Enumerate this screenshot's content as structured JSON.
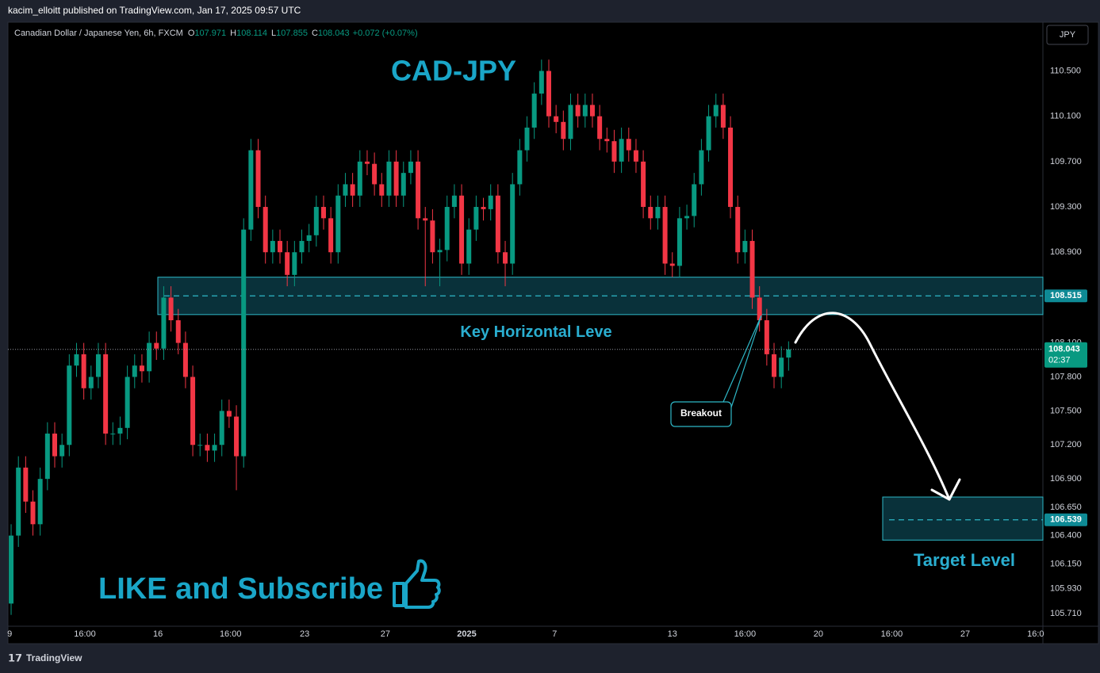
{
  "header": {
    "byline": "kacim_elloitt published on TradingView.com, Jan 17, 2025 09:57 UTC",
    "symbol": "Canadian Dollar / Japanese Yen, 6h, FXCM",
    "ohlc_labels": [
      "O",
      "H",
      "L",
      "C"
    ],
    "change": "+0.072 (+0.07%)",
    "currency": "JPY"
  },
  "footer": {
    "brand": "TradingView"
  },
  "chart_data": {
    "type": "candlestick",
    "up_color": "#089981",
    "down_color": "#f23645",
    "open": [
      105.8,
      106.4,
      107.0,
      106.7,
      106.5,
      106.9,
      107.3,
      107.1,
      107.2,
      107.9,
      108.0,
      107.7,
      107.8,
      108.0,
      107.3,
      107.3,
      107.35,
      107.8,
      107.9,
      107.85,
      108.1,
      108.05,
      108.5,
      108.3,
      108.1,
      107.8,
      107.2,
      107.2,
      107.15,
      107.2,
      107.5,
      107.45,
      107.1,
      109.1,
      109.8,
      109.3,
      108.9,
      109.0,
      108.9,
      108.7,
      108.9,
      109.0,
      109.05,
      109.3,
      109.2,
      108.9,
      109.4,
      109.5,
      109.4,
      109.7,
      109.68,
      109.5,
      109.4,
      109.7,
      109.4,
      109.6,
      109.7,
      109.2,
      109.18,
      108.9,
      108.92,
      109.3,
      109.4,
      108.8,
      109.1,
      109.3,
      109.28,
      109.4,
      108.9,
      108.8,
      109.5,
      109.8,
      110.0,
      110.3,
      110.5,
      110.1,
      110.05,
      109.9,
      110.2,
      110.1,
      110.2,
      110.1,
      109.9,
      109.88,
      109.7,
      109.9,
      109.8,
      109.7,
      109.3,
      109.2,
      109.3,
      108.8,
      108.78,
      109.2,
      109.22,
      109.5,
      109.8,
      110.1,
      110.2,
      110.0,
      109.3,
      108.9,
      109.0,
      108.5,
      108.3,
      108.0,
      107.8,
      107.971
    ],
    "high": [
      106.5,
      107.1,
      107.1,
      106.8,
      107.0,
      107.4,
      107.4,
      107.3,
      108.0,
      108.1,
      108.1,
      107.9,
      108.1,
      108.1,
      107.4,
      107.45,
      107.9,
      108.0,
      108.0,
      108.2,
      108.2,
      108.6,
      108.6,
      108.4,
      108.2,
      107.9,
      107.3,
      107.3,
      107.3,
      107.6,
      107.6,
      107.55,
      109.2,
      109.9,
      109.9,
      109.4,
      109.1,
      109.1,
      109.0,
      109.0,
      109.1,
      109.15,
      109.4,
      109.4,
      109.3,
      109.5,
      109.6,
      109.6,
      109.8,
      109.8,
      109.78,
      109.6,
      109.8,
      109.8,
      109.7,
      109.8,
      109.8,
      109.3,
      109.28,
      109.02,
      109.4,
      109.5,
      109.5,
      109.2,
      109.4,
      109.38,
      109.5,
      109.5,
      109.0,
      109.6,
      109.9,
      110.1,
      110.4,
      110.6,
      110.6,
      110.2,
      110.15,
      110.3,
      110.3,
      110.3,
      110.3,
      110.2,
      110.0,
      109.98,
      110.0,
      110.0,
      109.9,
      109.8,
      109.4,
      109.4,
      109.4,
      108.9,
      109.3,
      109.32,
      109.6,
      109.9,
      110.2,
      110.3,
      110.3,
      110.1,
      109.4,
      109.1,
      109.1,
      108.6,
      108.4,
      108.1,
      108.07,
      108.114
    ],
    "low": [
      105.7,
      106.3,
      106.6,
      106.4,
      106.4,
      106.8,
      107.0,
      107.0,
      107.1,
      107.8,
      107.6,
      107.6,
      107.7,
      107.2,
      107.2,
      107.2,
      107.25,
      107.7,
      107.75,
      107.75,
      107.95,
      107.95,
      108.2,
      108.0,
      107.7,
      107.1,
      107.1,
      107.05,
      107.05,
      107.1,
      107.35,
      106.8,
      107.0,
      109.0,
      109.2,
      108.8,
      108.8,
      108.8,
      108.6,
      108.6,
      108.8,
      108.9,
      108.95,
      109.1,
      108.8,
      108.8,
      109.3,
      109.3,
      109.3,
      109.58,
      109.4,
      109.3,
      109.3,
      109.3,
      109.3,
      109.5,
      109.1,
      108.6,
      108.8,
      108.6,
      108.82,
      109.2,
      108.7,
      108.7,
      109.0,
      109.18,
      109.18,
      108.8,
      108.6,
      108.7,
      109.4,
      109.7,
      109.9,
      110.2,
      110.0,
      109.95,
      109.8,
      109.8,
      110.0,
      110.0,
      110.0,
      109.8,
      109.78,
      109.6,
      109.6,
      109.7,
      109.6,
      109.2,
      109.1,
      109.1,
      108.7,
      108.68,
      108.68,
      109.1,
      109.12,
      109.4,
      109.7,
      110.0,
      109.9,
      109.2,
      108.8,
      108.8,
      108.4,
      108.2,
      107.9,
      107.7,
      107.7,
      107.855
    ],
    "close": [
      106.4,
      107.0,
      106.7,
      106.5,
      106.9,
      107.3,
      107.1,
      107.2,
      107.9,
      108.0,
      107.7,
      107.8,
      108.0,
      107.3,
      107.3,
      107.35,
      107.8,
      107.9,
      107.85,
      108.1,
      108.05,
      108.5,
      108.3,
      108.1,
      107.8,
      107.2,
      107.2,
      107.15,
      107.2,
      107.5,
      107.45,
      107.1,
      109.1,
      109.8,
      109.3,
      108.9,
      109.0,
      108.9,
      108.7,
      108.9,
      109.0,
      109.05,
      109.3,
      109.2,
      108.9,
      109.4,
      109.5,
      109.4,
      109.7,
      109.68,
      109.5,
      109.4,
      109.7,
      109.4,
      109.6,
      109.7,
      109.2,
      109.18,
      108.9,
      108.92,
      109.3,
      109.4,
      108.8,
      109.1,
      109.3,
      109.28,
      109.4,
      108.9,
      108.8,
      109.5,
      109.8,
      110.0,
      110.3,
      110.5,
      110.1,
      110.05,
      109.9,
      110.2,
      110.1,
      110.2,
      110.1,
      109.9,
      109.88,
      109.7,
      109.9,
      109.8,
      109.7,
      109.3,
      109.2,
      109.3,
      108.8,
      108.78,
      109.2,
      109.22,
      109.5,
      109.8,
      110.1,
      110.2,
      110.0,
      109.3,
      108.9,
      109.0,
      108.5,
      108.3,
      108.0,
      107.8,
      107.97,
      108.043
    ],
    "xlim": [
      -0.44,
      142
    ],
    "xticks": [
      {
        "value": -0.2,
        "label": "9"
      },
      {
        "value": 10.15,
        "label": "16:00"
      },
      {
        "value": 20.2,
        "label": "16"
      },
      {
        "value": 30.2,
        "label": "16:00"
      },
      {
        "value": 40.4,
        "label": "23"
      },
      {
        "value": 51.5,
        "label": "27"
      },
      {
        "value": 62.7,
        "label": "2025"
      },
      {
        "value": 74.8,
        "label": "7"
      },
      {
        "value": 91.0,
        "label": "13"
      },
      {
        "value": 101.0,
        "label": "16:00"
      },
      {
        "value": 111.1,
        "label": "20"
      },
      {
        "value": 121.2,
        "label": "16:00"
      },
      {
        "value": 131.3,
        "label": "27"
      },
      {
        "value": 141.0,
        "label": "16:0"
      }
    ],
    "ylim": [
      105.6,
      110.93
    ],
    "yticks": [
      {
        "value": 110.5,
        "label": "110.500"
      },
      {
        "value": 110.1,
        "label": "110.100"
      },
      {
        "value": 109.7,
        "label": "109.700"
      },
      {
        "value": 109.3,
        "label": "109.300"
      },
      {
        "value": 108.9,
        "label": "108.900"
      },
      {
        "value": 108.1,
        "label": "108.100"
      },
      {
        "value": 107.8,
        "label": "107.800"
      },
      {
        "value": 107.5,
        "label": "107.500"
      },
      {
        "value": 107.2,
        "label": "107.200"
      },
      {
        "value": 106.9,
        "label": "106.900"
      },
      {
        "value": 106.65,
        "label": "106.650"
      },
      {
        "value": 106.4,
        "label": "106.400"
      },
      {
        "value": 106.15,
        "label": "106.150"
      },
      {
        "value": 105.93,
        "label": "105.930"
      },
      {
        "value": 105.71,
        "label": "105.710"
      }
    ],
    "grid": false,
    "countdown": "02:37",
    "annotations": {
      "title": "CAD-JPY",
      "key_zone": {
        "label": "Key Horizontal Leve",
        "top": 108.68,
        "bottom": 108.35,
        "level": 108.515
      },
      "target_zone": {
        "label": "Target Level",
        "top": 106.74,
        "bottom": 106.36,
        "level": 106.539
      },
      "callout": "Breakout",
      "promo": "LIKE and Subscribe"
    }
  }
}
